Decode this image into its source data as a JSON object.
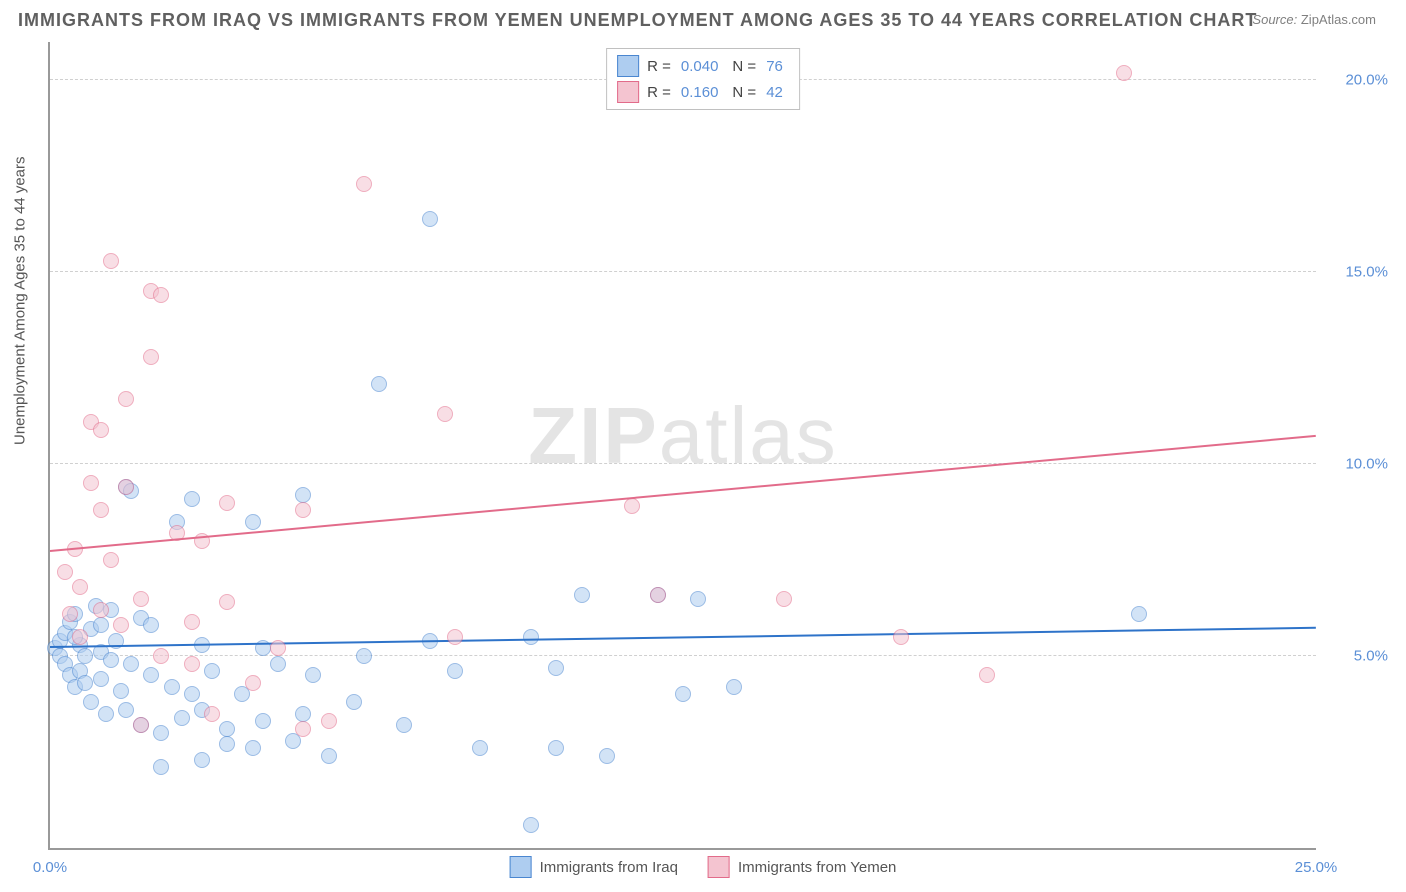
{
  "title": "IMMIGRANTS FROM IRAQ VS IMMIGRANTS FROM YEMEN UNEMPLOYMENT AMONG AGES 35 TO 44 YEARS CORRELATION CHART",
  "source_label": "Source:",
  "source_value": "ZipAtlas.com",
  "watermark_bold": "ZIP",
  "watermark_light": "atlas",
  "yaxis_title": "Unemployment Among Ages 35 to 44 years",
  "chart": {
    "type": "scatter",
    "xlim": [
      0,
      25
    ],
    "ylim": [
      0,
      21
    ],
    "background_color": "#ffffff",
    "grid_color": "#d0d0d0",
    "axis_color": "#999999",
    "marker_size": 16,
    "marker_opacity": 0.55,
    "series": [
      {
        "name": "Immigrants from Iraq",
        "fill": "#aecdf0",
        "stroke": "#4a86d0",
        "R": "0.040",
        "N": "76",
        "trend": {
          "x1": 0,
          "y1": 5.2,
          "x2": 25,
          "y2": 5.7,
          "color": "#2e73c9"
        },
        "points": [
          [
            0.1,
            5.2
          ],
          [
            0.2,
            5.0
          ],
          [
            0.2,
            5.4
          ],
          [
            0.3,
            4.8
          ],
          [
            0.3,
            5.6
          ],
          [
            0.4,
            4.5
          ],
          [
            0.4,
            5.9
          ],
          [
            0.5,
            4.2
          ],
          [
            0.5,
            6.1
          ],
          [
            0.6,
            5.3
          ],
          [
            0.6,
            4.6
          ],
          [
            0.7,
            5.0
          ],
          [
            0.8,
            3.8
          ],
          [
            0.8,
            5.7
          ],
          [
            0.9,
            6.3
          ],
          [
            1.0,
            4.4
          ],
          [
            1.0,
            5.1
          ],
          [
            1.1,
            3.5
          ],
          [
            1.2,
            4.9
          ],
          [
            1.2,
            6.2
          ],
          [
            1.3,
            5.4
          ],
          [
            1.4,
            4.1
          ],
          [
            1.5,
            3.6
          ],
          [
            1.5,
            9.4
          ],
          [
            1.6,
            4.8
          ],
          [
            1.6,
            9.3
          ],
          [
            1.8,
            3.2
          ],
          [
            1.8,
            6.0
          ],
          [
            2.0,
            4.5
          ],
          [
            2.0,
            5.8
          ],
          [
            2.2,
            3.0
          ],
          [
            2.2,
            2.1
          ],
          [
            2.4,
            4.2
          ],
          [
            2.5,
            8.5
          ],
          [
            2.6,
            3.4
          ],
          [
            2.8,
            4.0
          ],
          [
            2.8,
            9.1
          ],
          [
            3.0,
            3.6
          ],
          [
            3.0,
            5.3
          ],
          [
            3.0,
            2.3
          ],
          [
            3.2,
            4.6
          ],
          [
            3.5,
            3.1
          ],
          [
            3.5,
            2.7
          ],
          [
            3.8,
            4.0
          ],
          [
            4.0,
            2.6
          ],
          [
            4.0,
            8.5
          ],
          [
            4.2,
            3.3
          ],
          [
            4.2,
            5.2
          ],
          [
            4.5,
            4.8
          ],
          [
            4.8,
            2.8
          ],
          [
            5.0,
            3.5
          ],
          [
            5.0,
            9.2
          ],
          [
            5.2,
            4.5
          ],
          [
            5.5,
            2.4
          ],
          [
            6.0,
            3.8
          ],
          [
            6.2,
            5.0
          ],
          [
            6.5,
            12.1
          ],
          [
            7.0,
            3.2
          ],
          [
            7.5,
            5.4
          ],
          [
            7.5,
            16.4
          ],
          [
            8.0,
            4.6
          ],
          [
            8.5,
            2.6
          ],
          [
            9.5,
            5.5
          ],
          [
            9.5,
            0.6
          ],
          [
            10.0,
            4.7
          ],
          [
            10.0,
            2.6
          ],
          [
            10.5,
            6.6
          ],
          [
            11.0,
            2.4
          ],
          [
            12.0,
            6.6
          ],
          [
            12.5,
            4.0
          ],
          [
            12.8,
            6.5
          ],
          [
            13.5,
            4.2
          ],
          [
            21.5,
            6.1
          ],
          [
            1.0,
            5.8
          ],
          [
            0.5,
            5.5
          ],
          [
            0.7,
            4.3
          ]
        ]
      },
      {
        "name": "Immigrants from Yemen",
        "fill": "#f4c4d0",
        "stroke": "#e26b8a",
        "R": "0.160",
        "N": "42",
        "trend": {
          "x1": 0,
          "y1": 7.7,
          "x2": 25,
          "y2": 10.7,
          "color": "#e26b8a"
        },
        "points": [
          [
            0.3,
            7.2
          ],
          [
            0.4,
            6.1
          ],
          [
            0.5,
            7.8
          ],
          [
            0.6,
            5.5
          ],
          [
            0.6,
            6.8
          ],
          [
            0.8,
            9.5
          ],
          [
            0.8,
            11.1
          ],
          [
            1.0,
            8.8
          ],
          [
            1.0,
            6.2
          ],
          [
            1.2,
            7.5
          ],
          [
            1.2,
            15.3
          ],
          [
            1.4,
            5.8
          ],
          [
            1.5,
            11.7
          ],
          [
            1.5,
            9.4
          ],
          [
            1.8,
            6.5
          ],
          [
            1.8,
            3.2
          ],
          [
            2.0,
            14.5
          ],
          [
            2.0,
            12.8
          ],
          [
            2.2,
            5.0
          ],
          [
            2.2,
            14.4
          ],
          [
            2.5,
            8.2
          ],
          [
            2.8,
            4.8
          ],
          [
            2.8,
            5.9
          ],
          [
            3.0,
            8.0
          ],
          [
            3.2,
            3.5
          ],
          [
            3.5,
            9.0
          ],
          [
            3.5,
            6.4
          ],
          [
            4.0,
            4.3
          ],
          [
            4.5,
            5.2
          ],
          [
            5.0,
            3.1
          ],
          [
            5.0,
            8.8
          ],
          [
            5.5,
            3.3
          ],
          [
            6.2,
            17.3
          ],
          [
            7.8,
            11.3
          ],
          [
            8.0,
            5.5
          ],
          [
            11.5,
            8.9
          ],
          [
            12.0,
            6.6
          ],
          [
            14.5,
            6.5
          ],
          [
            16.8,
            5.5
          ],
          [
            18.5,
            4.5
          ],
          [
            21.2,
            20.2
          ],
          [
            1.0,
            10.9
          ]
        ]
      }
    ],
    "yticks": [
      {
        "v": 5,
        "label": "5.0%"
      },
      {
        "v": 10,
        "label": "10.0%"
      },
      {
        "v": 15,
        "label": "15.0%"
      },
      {
        "v": 20,
        "label": "20.0%"
      }
    ],
    "xticks": [
      {
        "v": 0,
        "label": "0.0%"
      },
      {
        "v": 25,
        "label": "25.0%"
      }
    ],
    "top_legend_prefix_R": "R =",
    "top_legend_prefix_N": "N ="
  }
}
